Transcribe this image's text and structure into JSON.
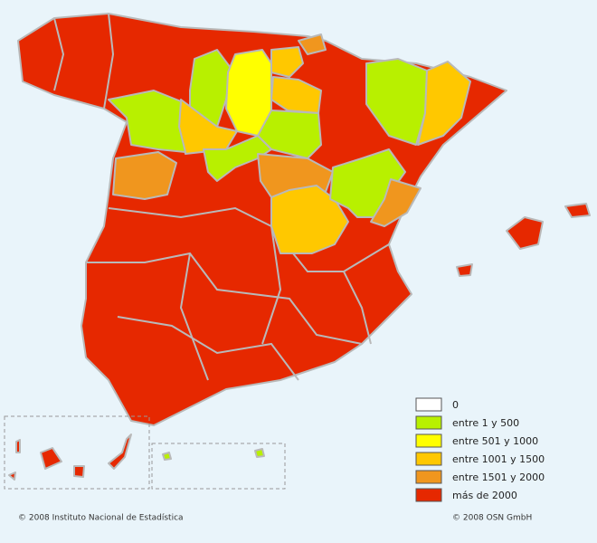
{
  "legend": [
    {
      "label": "0",
      "color": "#ffffff"
    },
    {
      "label": "entre 1 y 500",
      "color": "#b8f000"
    },
    {
      "label": "entre 501 y 1000",
      "color": "#ffff00"
    },
    {
      "label": "entre 1001 y 1500",
      "color": "#ffc800"
    },
    {
      "label": "entre 1501 y 2000",
      "color": "#f0961e"
    },
    {
      "label": "más de 2000",
      "color": "#e62800"
    }
  ],
  "footer": {
    "left": "© 2008 Instituto Nacional de Estadística",
    "right": "© 2008 OSN GmbH"
  }
}
